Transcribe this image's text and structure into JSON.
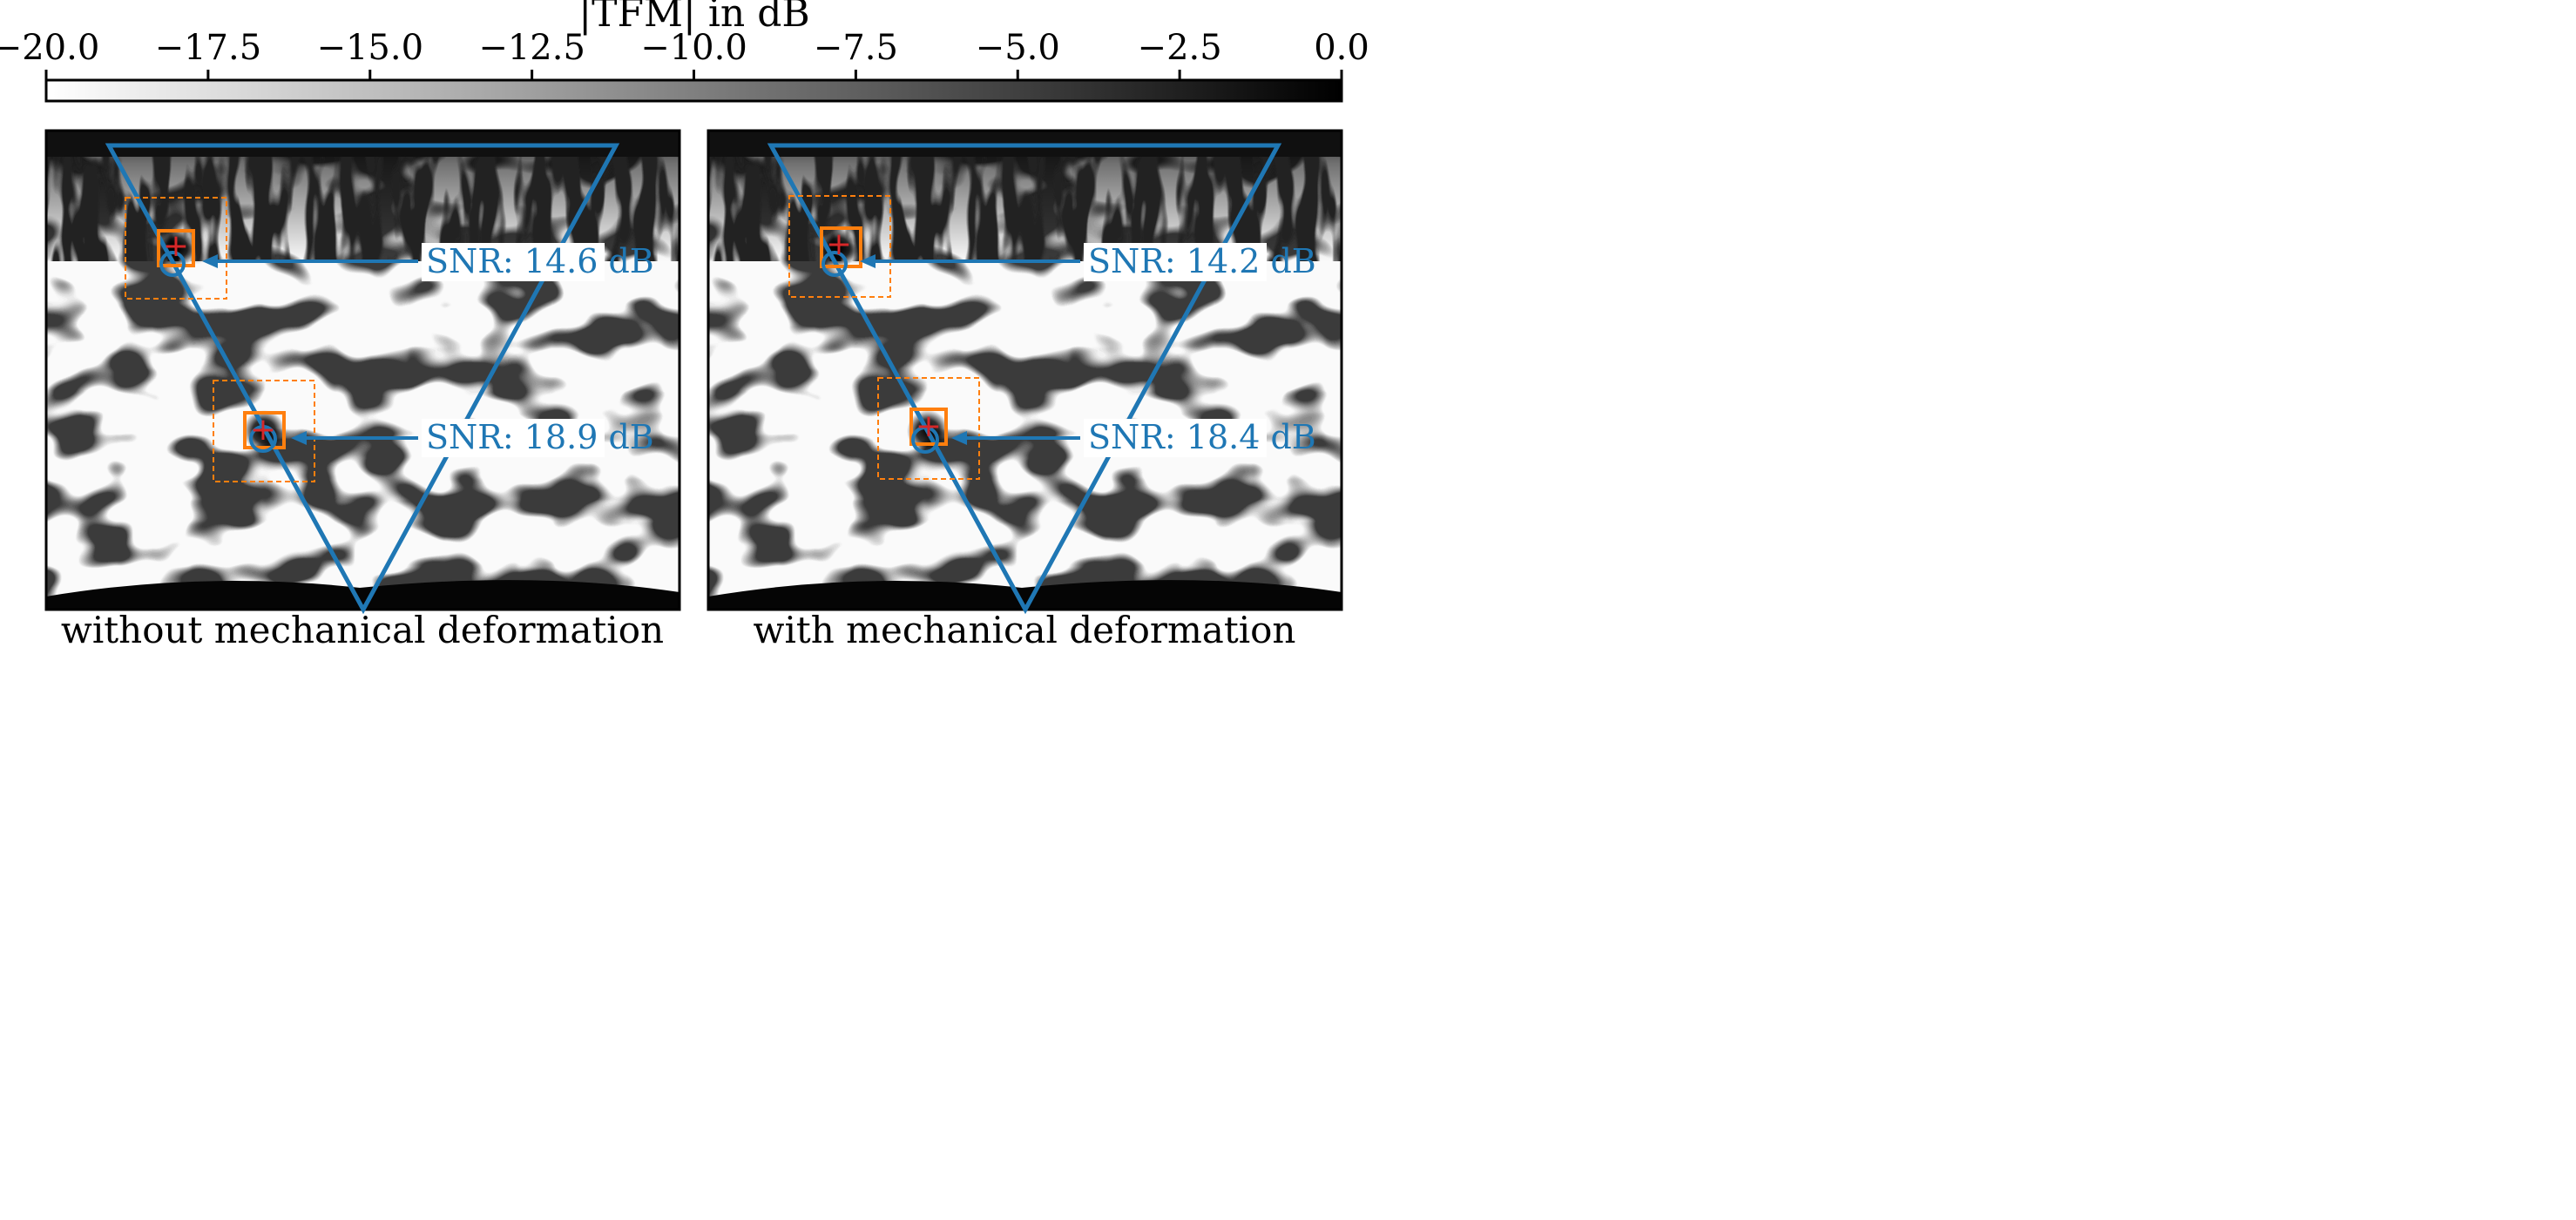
{
  "figure": {
    "colorbar": {
      "label": "|TFM| in dB",
      "ticks": [
        "−20.0",
        "−17.5",
        "−15.0",
        "−12.5",
        "−10.0",
        "−7.5",
        "−5.0",
        "−2.5",
        "0.0"
      ]
    },
    "panels": [
      {
        "caption": "without mechanical deformation"
      },
      {
        "caption": "with mechanical deformation"
      }
    ]
  },
  "colors": {
    "triangle": "#1f77b4",
    "annotation_text": "#1f77b4",
    "box": "#ff7f0e",
    "marker_plus": "#d62728",
    "marker_circle": "#1f77b4"
  },
  "chart_data": [
    {
      "type": "heatmap",
      "title": "",
      "xlabel": "without mechanical deformation",
      "colorbar_label": "|TFM| in dB",
      "colorbar_range": [
        -20.0,
        0.0
      ],
      "colorbar_ticks": [
        -20.0,
        -17.5,
        -15.0,
        -12.5,
        -10.0,
        -7.5,
        -5.0,
        -2.5,
        0.0
      ],
      "colormap": "gray_r",
      "annotations": [
        {
          "text": "SNR: 14.6 dB",
          "snr_db": 14.6
        },
        {
          "text": "SNR: 18.9 dB",
          "snr_db": 18.9
        }
      ]
    },
    {
      "type": "heatmap",
      "title": "",
      "xlabel": "with mechanical deformation",
      "colorbar_label": "|TFM| in dB",
      "colorbar_range": [
        -20.0,
        0.0
      ],
      "colorbar_ticks": [
        -20.0,
        -17.5,
        -15.0,
        -12.5,
        -10.0,
        -7.5,
        -5.0,
        -2.5,
        0.0
      ],
      "colormap": "gray_r",
      "annotations": [
        {
          "text": "SNR: 14.2 dB",
          "snr_db": 14.2
        },
        {
          "text": "SNR: 18.4 dB",
          "snr_db": 18.4
        }
      ]
    }
  ]
}
